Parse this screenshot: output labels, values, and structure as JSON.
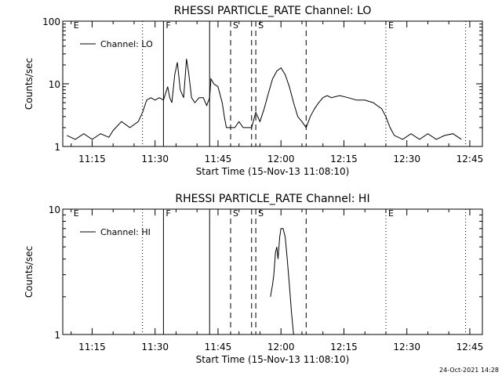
{
  "stamp": "24-Oct-2021 14:28",
  "colors": {
    "background": "#ffffff",
    "ink": "#000000"
  },
  "chart_data": [
    {
      "type": "line",
      "title": "RHESSI PARTICLE_RATE Channel: LO",
      "xlabel": "Start Time (15-Nov-13 11:08:10)",
      "ylabel": "Counts/sec",
      "yscale": "log",
      "xlim": [
        "11:08",
        "12:48"
      ],
      "ylim": [
        1,
        100
      ],
      "x_ticks": [
        "11:15",
        "11:30",
        "11:45",
        "12:00",
        "12:15",
        "12:30",
        "12:45"
      ],
      "y_ticks": [
        "1",
        "10",
        "100"
      ],
      "grid": false,
      "legend": {
        "position": "top-left",
        "entries": [
          "Channel: LO"
        ]
      },
      "markers": [
        {
          "time": "11:10",
          "label": "E",
          "style": "none"
        },
        {
          "time": "11:27",
          "label": "",
          "style": "dotted"
        },
        {
          "time": "11:32",
          "label": "F",
          "style": "solid"
        },
        {
          "time": "11:43",
          "label": "",
          "style": "solid"
        },
        {
          "time": "11:48",
          "label": "S",
          "style": "dashed"
        },
        {
          "time": "11:53",
          "label": "",
          "style": "dashed"
        },
        {
          "time": "11:54",
          "label": "S",
          "style": "dashed"
        },
        {
          "time": "12:06",
          "label": "",
          "style": "dashed"
        },
        {
          "time": "12:25",
          "label": "E",
          "style": "dotted"
        },
        {
          "time": "12:44",
          "label": "",
          "style": "dotted"
        }
      ],
      "series": [
        {
          "name": "Channel: LO",
          "points": [
            [
              "11:09",
              1.5
            ],
            [
              "11:11",
              1.3
            ],
            [
              "11:13",
              1.6
            ],
            [
              "11:15",
              1.3
            ],
            [
              "11:17",
              1.6
            ],
            [
              "11:19",
              1.4
            ],
            [
              "11:20",
              1.8
            ],
            [
              "11:22",
              2.5
            ],
            [
              "11:24",
              2.0
            ],
            [
              "11:26",
              2.5
            ],
            [
              "11:27",
              3.5
            ],
            [
              "11:28",
              5.5
            ],
            [
              "11:29",
              6.0
            ],
            [
              "11:30",
              5.5
            ],
            [
              "11:31",
              6.0
            ],
            [
              "11:32",
              5.5
            ],
            [
              "11:33",
              9.0
            ],
            [
              "11:33.5",
              6.0
            ],
            [
              "11:34",
              5.0
            ],
            [
              "11:34.7",
              14.0
            ],
            [
              "11:35.3",
              22.0
            ],
            [
              "11:36",
              8.0
            ],
            [
              "11:36.8",
              6.0
            ],
            [
              "11:37.5",
              25.0
            ],
            [
              "11:38",
              15.0
            ],
            [
              "11:38.7",
              6.0
            ],
            [
              "11:39.5",
              5.0
            ],
            [
              "11:40.5",
              6.0
            ],
            [
              "11:41.5",
              6.0
            ],
            [
              "11:42.3",
              4.5
            ],
            [
              "11:43",
              6.0
            ],
            [
              "11:43.3",
              12.0
            ],
            [
              "11:44",
              10.0
            ],
            [
              "11:45",
              9.0
            ],
            [
              "11:46",
              5.0
            ],
            [
              "11:46.5",
              3.0
            ],
            [
              "11:47",
              2.0
            ],
            [
              "11:49",
              2.0
            ],
            [
              "11:50",
              2.5
            ],
            [
              "11:51",
              2.0
            ],
            [
              "11:53",
              2.0
            ],
            [
              "11:54",
              3.5
            ],
            [
              "11:55",
              2.5
            ],
            [
              "11:56",
              4.0
            ],
            [
              "11:57",
              7.0
            ],
            [
              "11:58",
              12.0
            ],
            [
              "11:59",
              16.0
            ],
            [
              "12:00",
              18.0
            ],
            [
              "12:01",
              14.0
            ],
            [
              "12:02",
              9.0
            ],
            [
              "12:03",
              5.0
            ],
            [
              "12:04",
              3.0
            ],
            [
              "12:05",
              2.5
            ],
            [
              "12:06",
              2.0
            ],
            [
              "12:07",
              3.0
            ],
            [
              "12:08",
              4.0
            ],
            [
              "12:09",
              5.0
            ],
            [
              "12:10",
              6.0
            ],
            [
              "12:11",
              6.5
            ],
            [
              "12:12",
              6.0
            ],
            [
              "12:14",
              6.5
            ],
            [
              "12:16",
              6.0
            ],
            [
              "12:18",
              5.5
            ],
            [
              "12:20",
              5.5
            ],
            [
              "12:22",
              5.0
            ],
            [
              "12:24",
              4.0
            ],
            [
              "12:25",
              3.0
            ],
            [
              "12:26",
              2.0
            ],
            [
              "12:27",
              1.5
            ],
            [
              "12:29",
              1.3
            ],
            [
              "12:31",
              1.6
            ],
            [
              "12:33",
              1.3
            ],
            [
              "12:35",
              1.6
            ],
            [
              "12:37",
              1.3
            ],
            [
              "12:39",
              1.5
            ],
            [
              "12:41",
              1.6
            ],
            [
              "12:43",
              1.3
            ]
          ]
        }
      ]
    },
    {
      "type": "line",
      "title": "RHESSI PARTICLE_RATE Channel: HI",
      "xlabel": "Start Time (15-Nov-13 11:08:10)",
      "ylabel": "Counts/sec",
      "yscale": "log",
      "xlim": [
        "11:08",
        "12:48"
      ],
      "ylim": [
        1,
        10
      ],
      "x_ticks": [
        "11:15",
        "11:30",
        "11:45",
        "12:00",
        "12:15",
        "12:30",
        "12:45"
      ],
      "y_ticks": [
        "1",
        "10"
      ],
      "grid": false,
      "legend": {
        "position": "top-left",
        "entries": [
          "Channel: HI"
        ]
      },
      "markers": [
        {
          "time": "11:10",
          "label": "E",
          "style": "none"
        },
        {
          "time": "11:27",
          "label": "",
          "style": "dotted"
        },
        {
          "time": "11:32",
          "label": "F",
          "style": "solid"
        },
        {
          "time": "11:43",
          "label": "",
          "style": "solid"
        },
        {
          "time": "11:48",
          "label": "S",
          "style": "dashed"
        },
        {
          "time": "11:53",
          "label": "",
          "style": "dashed"
        },
        {
          "time": "11:54",
          "label": "S",
          "style": "dashed"
        },
        {
          "time": "12:06",
          "label": "",
          "style": "dashed"
        },
        {
          "time": "12:25",
          "label": "E",
          "style": "dotted"
        },
        {
          "time": "12:44",
          "label": "",
          "style": "dotted"
        }
      ],
      "series": [
        {
          "name": "Channel: HI",
          "points": [
            [
              "11:57.5",
              2.0
            ],
            [
              "11:58",
              2.5
            ],
            [
              "11:58.3",
              3.0
            ],
            [
              "11:58.7",
              4.5
            ],
            [
              "11:59",
              5.0
            ],
            [
              "11:59.3",
              4.0
            ],
            [
              "11:59.7",
              6.0
            ],
            [
              "12:00",
              7.0
            ],
            [
              "12:00.5",
              7.0
            ],
            [
              "12:01",
              6.0
            ],
            [
              "12:01.5",
              4.0
            ],
            [
              "12:02",
              2.5
            ],
            [
              "12:02.5",
              1.5
            ],
            [
              "12:03",
              1.0
            ]
          ]
        }
      ]
    }
  ]
}
